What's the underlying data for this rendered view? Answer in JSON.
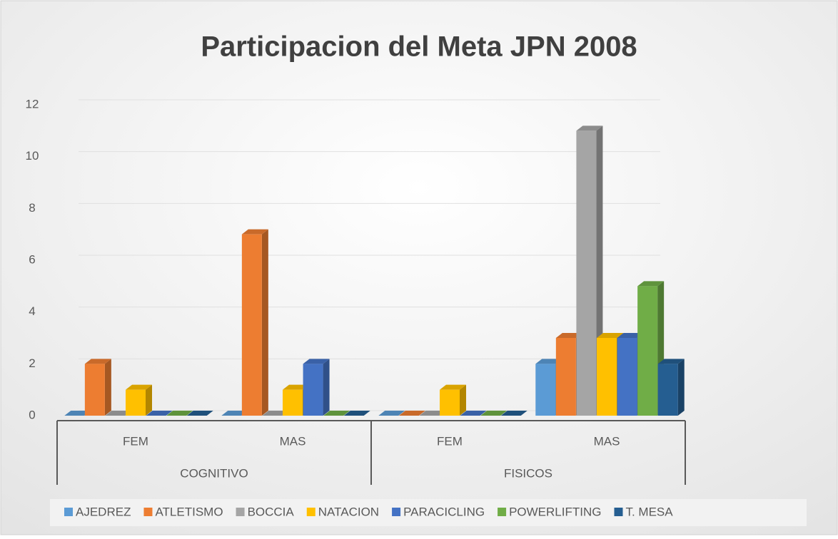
{
  "chart_data": {
    "type": "bar3d",
    "title": "Participacion del Meta JPN 2008",
    "groups": [
      {
        "name": "COGNITIVO",
        "categories": [
          "FEM",
          "MAS"
        ]
      },
      {
        "name": "FISICOS",
        "categories": [
          "FEM",
          "MAS"
        ]
      }
    ],
    "series": [
      {
        "name": "AJEDREZ",
        "color": "#5b9bd5",
        "values": [
          0,
          0,
          0,
          2
        ]
      },
      {
        "name": "ATLETISMO",
        "color": "#ed7d31",
        "values": [
          2,
          7,
          0,
          3
        ]
      },
      {
        "name": "BOCCIA",
        "color": "#a5a5a5",
        "values": [
          0,
          0,
          0,
          11
        ]
      },
      {
        "name": "NATACION",
        "color": "#ffc000",
        "values": [
          1,
          1,
          1,
          3
        ]
      },
      {
        "name": "PARACICLING",
        "color": "#4472c4",
        "values": [
          0,
          2,
          0,
          3
        ]
      },
      {
        "name": "POWERLIFTING",
        "color": "#70ad47",
        "values": [
          0,
          0,
          0,
          5
        ]
      },
      {
        "name": "T. MESA",
        "color": "#255e91",
        "values": [
          0,
          0,
          0,
          2
        ]
      }
    ],
    "ylim": [
      0,
      12
    ],
    "yticks": [
      0,
      2,
      4,
      6,
      8,
      10,
      12
    ],
    "grid": true,
    "legend": "bottom"
  }
}
